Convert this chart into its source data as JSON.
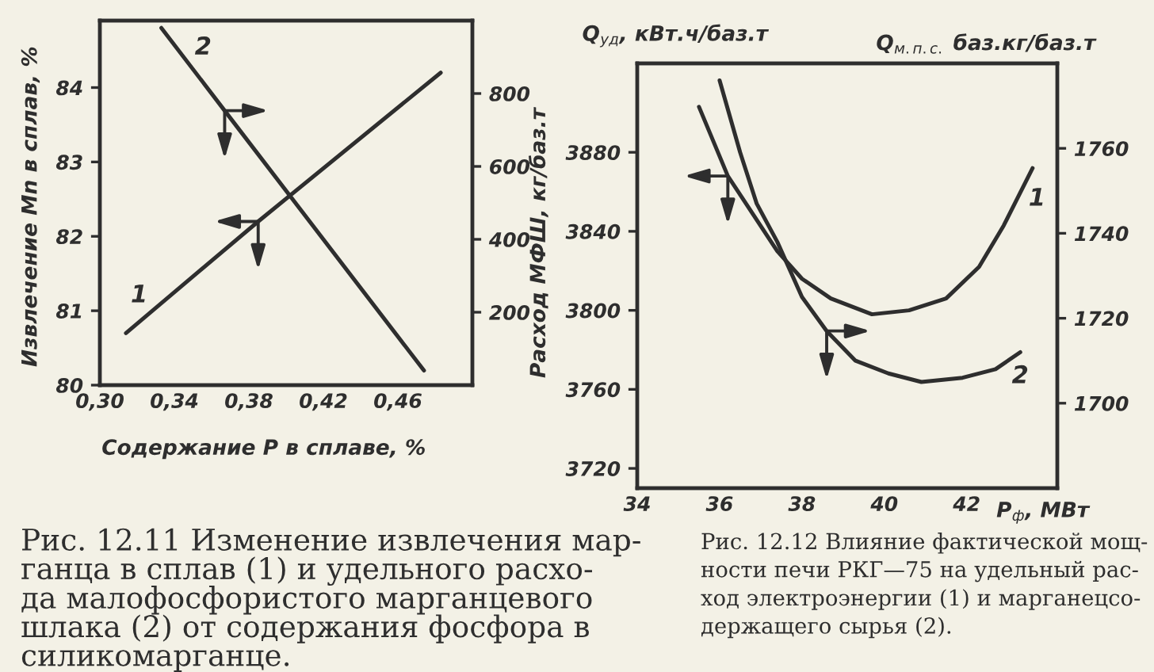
{
  "chart_data": [
    {
      "type": "line",
      "xlabel": "Содержание P в сплаве, %",
      "ylabel": "Извлечение Mn в сплав, %",
      "y2label": "Расход МФШ, кг/баз.т",
      "annotations": [
        "Рис. 12.11 Изменение извлечения мар-\nганца в сплав (1) и удельного расхо-\nда малофосфористого марганцевого\nшлака (2) от содержания фосфора в\nсиликомарганце."
      ],
      "xlim": [
        0.3,
        0.5
      ],
      "xticks": [
        {
          "value": 0.3,
          "label": "0,30"
        },
        {
          "value": 0.34,
          "label": "0,34"
        },
        {
          "value": 0.38,
          "label": "0,38"
        },
        {
          "value": 0.42,
          "label": "0,42"
        },
        {
          "value": 0.46,
          "label": "0,46"
        }
      ],
      "ylim": [
        80,
        84.9
      ],
      "yticks": [
        80,
        81,
        82,
        83,
        84
      ],
      "y2lim": [
        0,
        1000
      ],
      "y2ticks": [
        200,
        400,
        600,
        800
      ],
      "line_style": "solid",
      "series": [
        {
          "name": "1",
          "color": "#2e2e2e",
          "x": [
            0.314,
            0.385,
            0.483
          ],
          "values": [
            80.7,
            82.2,
            84.2
          ]
        },
        {
          "name": "2",
          "color": "#2e2e2e",
          "axis": "y2",
          "x": [
            0.333,
            0.367,
            0.474
          ],
          "values": [
            980,
            753,
            40
          ]
        }
      ]
    },
    {
      "type": "line",
      "xlabel": "P$_{ф}$, МВт",
      "ylabel": "Q$_{уд}$, кВт.ч/баз.т",
      "y2label": "Q$_{м.п.с.}$ баз.кг/баз.т",
      "annotations": [
        "Рис. 12.12 Влияние фактической мощ-\nности печи РКГ—75 на удельный рас-\nход электроэнергии (1) и марганецсо-\nдержащего сырья (2)."
      ],
      "xlim": [
        34,
        44.2
      ],
      "xticks": [
        34,
        36,
        38,
        40,
        42
      ],
      "ylim": [
        3710,
        3925
      ],
      "yticks": [
        3720,
        3760,
        3800,
        3840,
        3880
      ],
      "y2lim": [
        1680,
        1780
      ],
      "y2ticks": [
        1700,
        1720,
        1740,
        1760
      ],
      "line_style": "solid",
      "series": [
        {
          "name": "1",
          "color": "#2e2e2e",
          "x": [
            35.5,
            36.2,
            37.4,
            38.0,
            38.7,
            39.7,
            40.6,
            41.5,
            42.3,
            42.9,
            43.6
          ],
          "values": [
            3903,
            3868,
            3830,
            3816,
            3806,
            3798,
            3800,
            3806,
            3822,
            3843,
            3872
          ]
        },
        {
          "name": "2",
          "color": "#2e2e2e",
          "axis": "y2",
          "x": [
            36.0,
            36.5,
            36.9,
            37.4,
            38.0,
            38.6,
            39.3,
            40.1,
            40.9,
            41.9,
            42.7,
            43.3
          ],
          "values": [
            1776,
            1759,
            1747,
            1738,
            1725,
            1717,
            1710,
            1707,
            1705,
            1706,
            1708,
            1712
          ]
        }
      ]
    }
  ]
}
